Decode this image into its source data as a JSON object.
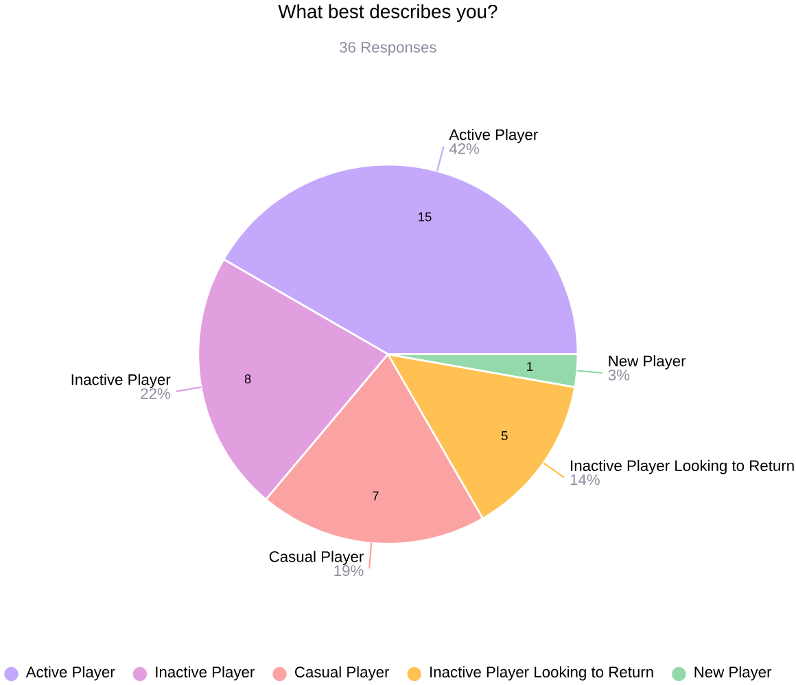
{
  "chart_data": {
    "type": "pie",
    "title": "What best describes you?",
    "subtitle": "36 Responses",
    "categories": [
      "Active Player",
      "Inactive Player",
      "Casual Player",
      "Inactive Player Looking to Return",
      "New Player"
    ],
    "values": [
      15,
      8,
      7,
      5,
      1
    ],
    "colors": [
      "#c4a8fc",
      "#e19fe0",
      "#fba3a3",
      "#ffc152",
      "#93d9aa"
    ],
    "annotations": [
      {
        "text": "42%",
        "x": "Active Player"
      },
      {
        "text": "22%",
        "x": "Inactive Player"
      },
      {
        "text": "19%",
        "x": "Casual Player"
      },
      {
        "text": "14%",
        "x": "Inactive Player Looking to Return"
      },
      {
        "text": "3%",
        "x": "New Player"
      }
    ],
    "data_labels": true,
    "legend": "bottom"
  }
}
